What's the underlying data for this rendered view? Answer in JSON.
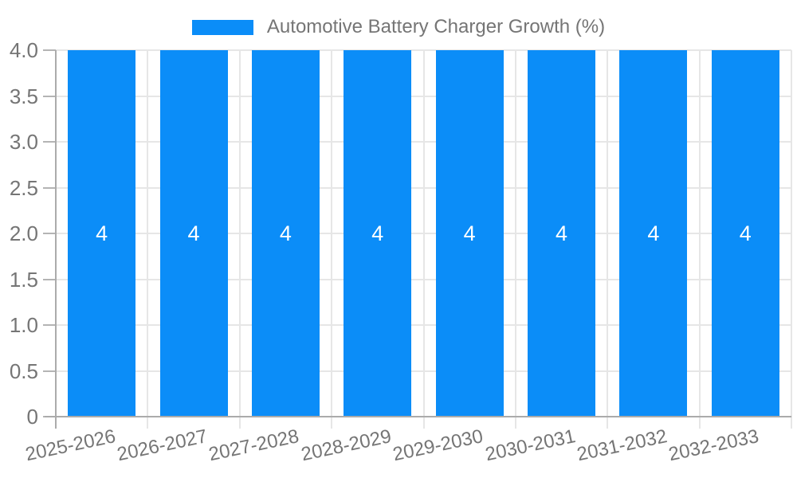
{
  "chart_data": {
    "type": "bar",
    "title": "Automotive Battery Charger Growth (%)",
    "categories": [
      "2025-2026",
      "2026-2027",
      "2027-2028",
      "2028-2029",
      "2029-2030",
      "2030-2031",
      "2031-2032",
      "2032-2033"
    ],
    "series": [
      {
        "name": "Automotive Battery Charger Growth (%)",
        "values": [
          4,
          4,
          4,
          4,
          4,
          4,
          4,
          4
        ]
      }
    ],
    "bar_value_labels": [
      "4",
      "4",
      "4",
      "4",
      "4",
      "4",
      "4",
      "4"
    ],
    "xlabel": "",
    "ylabel": "",
    "ylim": [
      0,
      4
    ],
    "ytick_step": 0.5,
    "ytick_labels": [
      "0",
      "0.5",
      "1.0",
      "1.5",
      "2.0",
      "2.5",
      "3.0",
      "3.5",
      "4.0"
    ],
    "grid": true,
    "legend_position": "top-center",
    "colors": {
      "bar": "#0b8df8",
      "grid": "#e6e6e6",
      "axis": "#ababab",
      "tick": "#b4b4b4",
      "text": "#757575",
      "bar_label": "#ffffff",
      "background": "#ffffff"
    }
  }
}
